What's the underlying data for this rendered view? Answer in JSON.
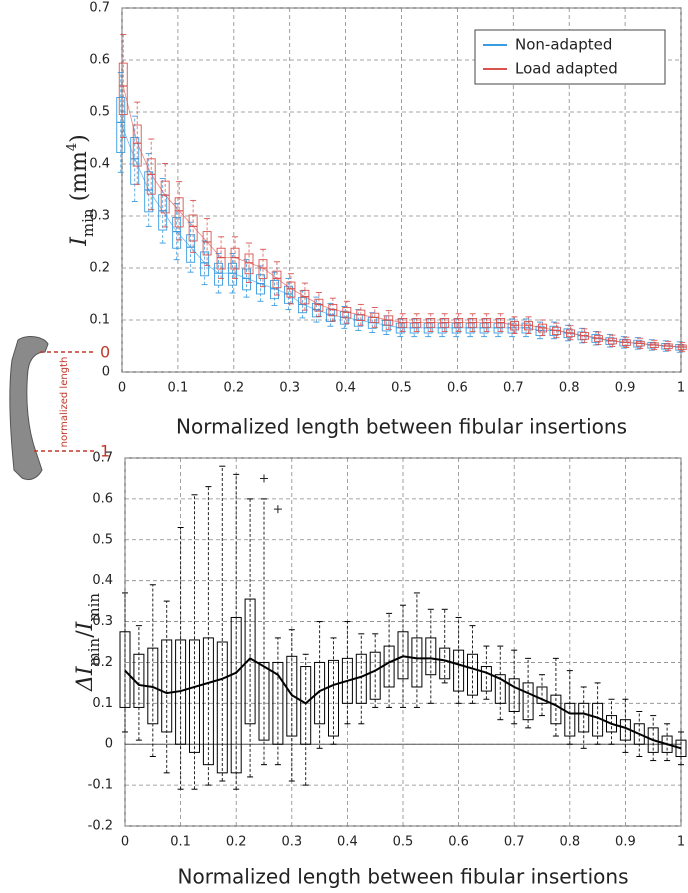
{
  "chart_data": [
    {
      "type": "box",
      "x": [
        0,
        0.025,
        0.05,
        0.075,
        0.1,
        0.125,
        0.15,
        0.175,
        0.2,
        0.225,
        0.25,
        0.275,
        0.3,
        0.325,
        0.35,
        0.375,
        0.4,
        0.425,
        0.45,
        0.475,
        0.5,
        0.525,
        0.55,
        0.575,
        0.6,
        0.625,
        0.65,
        0.675,
        0.7,
        0.725,
        0.75,
        0.775,
        0.8,
        0.825,
        0.85,
        0.875,
        0.9,
        0.925,
        0.95,
        0.975,
        1
      ],
      "xlim": [
        0,
        1
      ],
      "xticks": [
        0,
        0.1,
        0.2,
        0.3,
        0.4,
        0.5,
        0.6,
        0.7,
        0.8,
        0.9,
        1
      ],
      "ylim": [
        0,
        0.7
      ],
      "yticks": [
        0,
        0.1,
        0.2,
        0.3,
        0.4,
        0.5,
        0.6,
        0.7
      ],
      "xlabel": "Normalized length between fibular insertions",
      "ylabel": [
        "I",
        "min",
        " (mm",
        "4",
        ")"
      ],
      "grid": true,
      "legend": "upper right",
      "series": [
        {
          "name": "Non-adapted",
          "color": "#3a9be0",
          "median": [
            0.48,
            0.41,
            0.35,
            0.31,
            0.27,
            0.24,
            0.21,
            0.19,
            0.19,
            0.18,
            0.17,
            0.16,
            0.15,
            0.13,
            0.12,
            0.11,
            0.105,
            0.1,
            0.095,
            0.09,
            0.085,
            0.085,
            0.085,
            0.085,
            0.085,
            0.085,
            0.085,
            0.085,
            0.085,
            0.085,
            0.08,
            0.08,
            0.075,
            0.07,
            0.065,
            0.06,
            0.057,
            0.055,
            0.052,
            0.05,
            0.048
          ],
          "q1": [
            0.422,
            0.361,
            0.308,
            0.273,
            0.238,
            0.211,
            0.185,
            0.167,
            0.167,
            0.158,
            0.15,
            0.141,
            0.132,
            0.114,
            0.106,
            0.097,
            0.092,
            0.088,
            0.084,
            0.079,
            0.075,
            0.075,
            0.075,
            0.075,
            0.075,
            0.075,
            0.075,
            0.075,
            0.075,
            0.075,
            0.07,
            0.07,
            0.066,
            0.062,
            0.057,
            0.053,
            0.05,
            0.048,
            0.046,
            0.044,
            0.042
          ],
          "q3": [
            0.528,
            0.451,
            0.385,
            0.341,
            0.297,
            0.264,
            0.231,
            0.209,
            0.209,
            0.198,
            0.187,
            0.176,
            0.165,
            0.143,
            0.132,
            0.121,
            0.116,
            0.11,
            0.105,
            0.099,
            0.094,
            0.094,
            0.094,
            0.094,
            0.094,
            0.094,
            0.094,
            0.094,
            0.094,
            0.094,
            0.088,
            0.088,
            0.083,
            0.077,
            0.072,
            0.066,
            0.063,
            0.061,
            0.057,
            0.055,
            0.053
          ],
          "min": [
            0.384,
            0.328,
            0.28,
            0.248,
            0.216,
            0.192,
            0.168,
            0.152,
            0.152,
            0.144,
            0.136,
            0.128,
            0.12,
            0.104,
            0.096,
            0.088,
            0.084,
            0.08,
            0.076,
            0.072,
            0.068,
            0.068,
            0.068,
            0.068,
            0.068,
            0.068,
            0.068,
            0.068,
            0.068,
            0.068,
            0.064,
            0.064,
            0.06,
            0.056,
            0.052,
            0.048,
            0.046,
            0.044,
            0.042,
            0.04,
            0.038
          ],
          "max": [
            0.576,
            0.492,
            0.42,
            0.372,
            0.324,
            0.288,
            0.252,
            0.228,
            0.228,
            0.216,
            0.204,
            0.192,
            0.18,
            0.156,
            0.144,
            0.132,
            0.126,
            0.12,
            0.114,
            0.108,
            0.102,
            0.102,
            0.102,
            0.102,
            0.102,
            0.102,
            0.102,
            0.102,
            0.102,
            0.102,
            0.096,
            0.096,
            0.09,
            0.084,
            0.078,
            0.072,
            0.068,
            0.066,
            0.062,
            0.06,
            0.058
          ]
        },
        {
          "name": "Load adapted",
          "color": "#d9534f",
          "median": [
            0.55,
            0.44,
            0.38,
            0.34,
            0.31,
            0.28,
            0.25,
            0.22,
            0.22,
            0.21,
            0.2,
            0.18,
            0.16,
            0.145,
            0.13,
            0.12,
            0.115,
            0.11,
            0.105,
            0.1,
            0.095,
            0.095,
            0.095,
            0.095,
            0.095,
            0.095,
            0.095,
            0.095,
            0.09,
            0.09,
            0.085,
            0.08,
            0.075,
            0.07,
            0.065,
            0.06,
            0.057,
            0.055,
            0.052,
            0.05,
            0.048
          ],
          "q1": [
            0.495,
            0.396,
            0.342,
            0.306,
            0.279,
            0.252,
            0.225,
            0.198,
            0.198,
            0.189,
            0.18,
            0.162,
            0.144,
            0.131,
            0.117,
            0.108,
            0.104,
            0.099,
            0.095,
            0.09,
            0.086,
            0.086,
            0.086,
            0.086,
            0.086,
            0.086,
            0.086,
            0.086,
            0.081,
            0.081,
            0.077,
            0.072,
            0.068,
            0.063,
            0.059,
            0.054,
            0.051,
            0.05,
            0.047,
            0.045,
            0.043
          ],
          "q3": [
            0.594,
            0.475,
            0.41,
            0.367,
            0.335,
            0.302,
            0.27,
            0.238,
            0.238,
            0.227,
            0.216,
            0.194,
            0.173,
            0.157,
            0.14,
            0.13,
            0.124,
            0.119,
            0.113,
            0.108,
            0.103,
            0.103,
            0.103,
            0.103,
            0.103,
            0.103,
            0.103,
            0.103,
            0.097,
            0.097,
            0.092,
            0.086,
            0.081,
            0.076,
            0.07,
            0.065,
            0.062,
            0.059,
            0.056,
            0.054,
            0.052
          ],
          "min": [
            0.451,
            0.361,
            0.312,
            0.279,
            0.254,
            0.23,
            0.205,
            0.18,
            0.18,
            0.172,
            0.164,
            0.148,
            0.131,
            0.119,
            0.107,
            0.098,
            0.094,
            0.09,
            0.086,
            0.082,
            0.078,
            0.078,
            0.078,
            0.078,
            0.078,
            0.078,
            0.078,
            0.078,
            0.074,
            0.074,
            0.07,
            0.066,
            0.062,
            0.057,
            0.053,
            0.049,
            0.047,
            0.045,
            0.043,
            0.041,
            0.039
          ],
          "max": [
            0.649,
            0.519,
            0.448,
            0.401,
            0.366,
            0.33,
            0.295,
            0.26,
            0.26,
            0.248,
            0.236,
            0.212,
            0.189,
            0.171,
            0.153,
            0.142,
            0.136,
            0.13,
            0.124,
            0.118,
            0.112,
            0.112,
            0.112,
            0.112,
            0.112,
            0.112,
            0.112,
            0.112,
            0.106,
            0.106,
            0.1,
            0.094,
            0.089,
            0.083,
            0.077,
            0.071,
            0.067,
            0.065,
            0.061,
            0.059,
            0.057
          ]
        }
      ]
    },
    {
      "type": "box",
      "x": [
        0,
        0.025,
        0.05,
        0.075,
        0.1,
        0.125,
        0.15,
        0.175,
        0.2,
        0.225,
        0.25,
        0.275,
        0.3,
        0.325,
        0.35,
        0.375,
        0.4,
        0.425,
        0.45,
        0.475,
        0.5,
        0.525,
        0.55,
        0.575,
        0.6,
        0.625,
        0.65,
        0.675,
        0.7,
        0.725,
        0.75,
        0.775,
        0.8,
        0.825,
        0.85,
        0.875,
        0.9,
        0.925,
        0.95,
        0.975,
        1
      ],
      "xlim": [
        0,
        1
      ],
      "xticks": [
        0,
        0.1,
        0.2,
        0.3,
        0.4,
        0.5,
        0.6,
        0.7,
        0.8,
        0.9,
        1
      ],
      "ylim": [
        -0.2,
        0.7
      ],
      "yticks": [
        -0.2,
        -0.1,
        0,
        0.1,
        0.2,
        0.3,
        0.4,
        0.5,
        0.6,
        0.7
      ],
      "xlabel": "Normalized length between fibular insertions",
      "ylabel": [
        "ΔI",
        "min",
        "/",
        "I",
        "min"
      ],
      "grid": true,
      "series": [
        {
          "color": "#000000",
          "line": [
            0.18,
            0.145,
            0.14,
            0.125,
            0.13,
            0.14,
            0.15,
            0.16,
            0.175,
            0.21,
            0.19,
            0.17,
            0.12,
            0.1,
            0.13,
            0.145,
            0.155,
            0.165,
            0.18,
            0.2,
            0.215,
            0.21,
            0.21,
            0.205,
            0.195,
            0.185,
            0.175,
            0.16,
            0.14,
            0.125,
            0.11,
            0.095,
            0.075,
            0.075,
            0.065,
            0.05,
            0.04,
            0.025,
            0.01,
            0,
            -0.01
          ],
          "q1": [
            0.09,
            0.09,
            0.05,
            0.03,
            0,
            -0.02,
            -0.05,
            -0.07,
            -0.07,
            0.05,
            0.01,
            0,
            0.02,
            0,
            0.05,
            0.02,
            0.1,
            0.1,
            0.11,
            0.14,
            0.16,
            0.14,
            0.17,
            0.16,
            0.13,
            0.12,
            0.13,
            0.1,
            0.08,
            0.06,
            0.1,
            0.05,
            0.02,
            0.03,
            0.02,
            0.03,
            0.01,
            0,
            -0.02,
            -0.02,
            -0.03
          ],
          "q3": [
            0.275,
            0.22,
            0.235,
            0.255,
            0.255,
            0.255,
            0.26,
            0.25,
            0.31,
            0.355,
            0.2,
            0.2,
            0.215,
            0.19,
            0.2,
            0.205,
            0.21,
            0.22,
            0.225,
            0.24,
            0.275,
            0.26,
            0.26,
            0.235,
            0.23,
            0.22,
            0.19,
            0.17,
            0.16,
            0.15,
            0.14,
            0.12,
            0.1,
            0.1,
            0.1,
            0.07,
            0.06,
            0.05,
            0.04,
            0.02,
            0.01
          ],
          "min": [
            0.03,
            0.01,
            -0.03,
            -0.07,
            -0.11,
            -0.11,
            -0.1,
            -0.09,
            -0.11,
            -0.08,
            -0.05,
            -0.05,
            -0.09,
            -0.1,
            -0.01,
            0,
            0.05,
            0.05,
            0.09,
            0.09,
            0.09,
            0.09,
            0.1,
            0.15,
            0.1,
            0.1,
            0.11,
            0.06,
            0.05,
            0.04,
            0.07,
            0.02,
            0,
            -0.01,
            0,
            0,
            -0.02,
            -0.03,
            -0.04,
            -0.04,
            -0.05
          ],
          "max": [
            0.37,
            0.29,
            0.39,
            0.35,
            0.53,
            0.61,
            0.63,
            0.68,
            0.66,
            0.6,
            0.6,
            0.26,
            0.28,
            0.22,
            0.3,
            0.26,
            0.3,
            0.27,
            0.27,
            0.32,
            0.34,
            0.37,
            0.33,
            0.33,
            0.31,
            0.29,
            0.24,
            0.24,
            0.23,
            0.21,
            0.17,
            0.21,
            0.18,
            0.14,
            0.15,
            0.11,
            0.11,
            0.08,
            0.07,
            0.05,
            0.03
          ]
        }
      ],
      "outliers": {
        "x": [
          0.25,
          0.275
        ],
        "y": [
          0.65,
          0.575
        ]
      }
    }
  ],
  "inset": {
    "start_label": "0",
    "end_label": "1",
    "axis_label": "normalized length"
  }
}
